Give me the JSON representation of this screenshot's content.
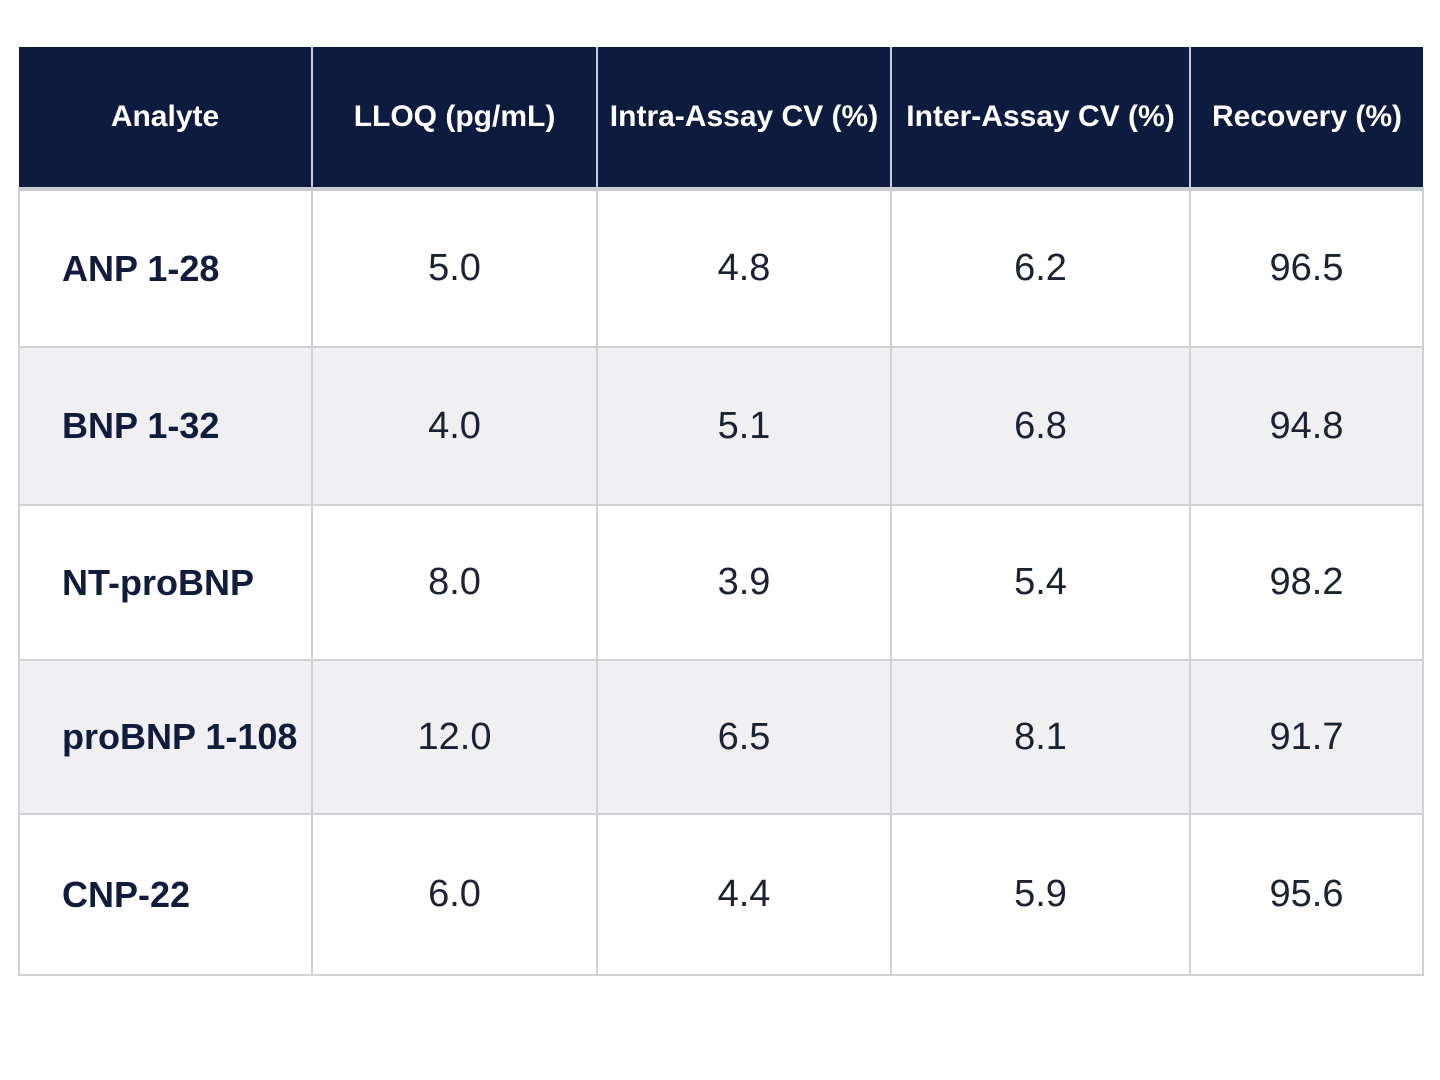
{
  "table": {
    "headers": [
      "Analyte",
      "LLOQ (pg/mL)",
      "Intra-Assay CV (%)",
      "Inter-Assay CV (%)",
      "Recovery (%)"
    ],
    "rows": [
      [
        "ANP 1-28",
        "5.0",
        "4.8",
        "6.2",
        "96.5"
      ],
      [
        "BNP 1-32",
        "4.0",
        "5.1",
        "6.8",
        "94.8"
      ],
      [
        "NT-proBNP",
        "8.0",
        "3.9",
        "5.4",
        "98.2"
      ],
      [
        "proBNP 1-108",
        "12.0",
        "6.5",
        "8.1",
        "91.7"
      ],
      [
        "CNP-22",
        "6.0",
        "4.4",
        "5.9",
        "95.6"
      ]
    ]
  },
  "colors": {
    "header_bg": "#0d1b3e",
    "header_text": "#ffffff",
    "alt_row_bg": "#f0f0f2",
    "grid_line": "#cfd1d6"
  }
}
